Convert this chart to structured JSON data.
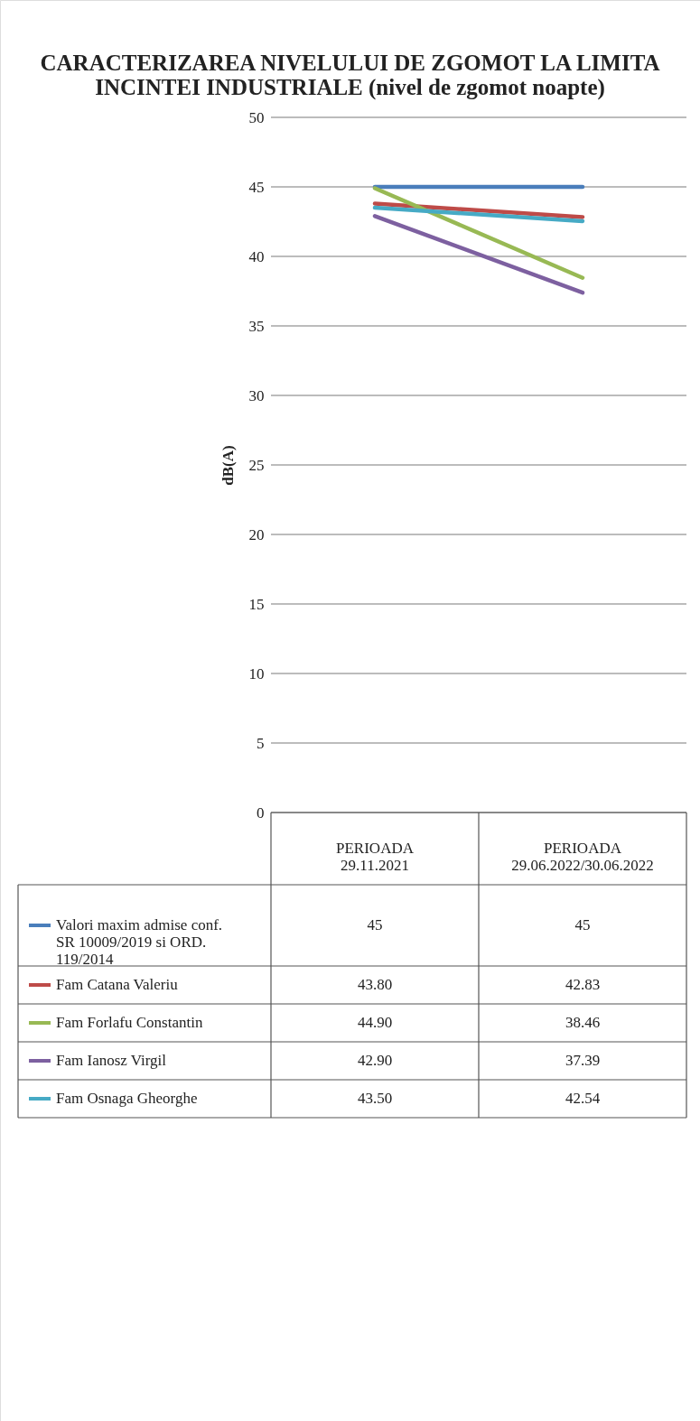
{
  "chart_data": {
    "type": "line",
    "title": "CARACTERIZAREA NIVELULUI DE ZGOMOT LA LIMITA INCINTEI INDUSTRIALE (nivel de zgomot noapte)",
    "ylabel": "dB(A)",
    "categories": [
      "PERIOADA 29.11.2021",
      "PERIOADA 29.06.2022/30.06.2022"
    ],
    "series": [
      {
        "name": "Valori maxim admise conf. SR 10009/2019 si ORD. 119/2014",
        "color": "#4a7ebb",
        "values": [
          45,
          45
        ],
        "value_labels": [
          "45",
          "45"
        ]
      },
      {
        "name": "Fam Catana Valeriu",
        "color": "#be4b48",
        "values": [
          43.8,
          42.83
        ],
        "value_labels": [
          "43.80",
          "42.83"
        ]
      },
      {
        "name": "Fam Forlafu Constantin",
        "color": "#98b954",
        "values": [
          44.9,
          38.46
        ],
        "value_labels": [
          "44.90",
          "38.46"
        ]
      },
      {
        "name": "Fam Ianosz Virgil",
        "color": "#7d60a0",
        "values": [
          42.9,
          37.39
        ],
        "value_labels": [
          "42.90",
          "37.39"
        ]
      },
      {
        "name": "Fam Osnaga Gheorghe",
        "color": "#46aac5",
        "values": [
          43.5,
          42.54
        ],
        "value_labels": [
          "43.50",
          "42.54"
        ]
      }
    ],
    "ylim": [
      0,
      50
    ],
    "yticks": [
      0,
      5,
      10,
      15,
      20,
      25,
      30,
      35,
      40,
      45,
      50
    ],
    "grid": "y",
    "legend": "bottom",
    "marker": "none",
    "line_style": "solid"
  }
}
